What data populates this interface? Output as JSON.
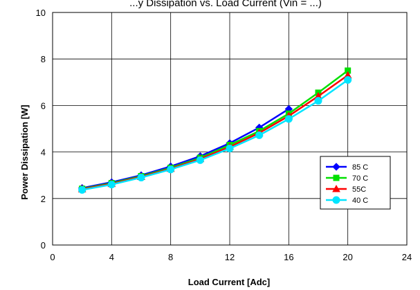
{
  "chart_data": {
    "type": "line",
    "title": "...y Dissipation vs. Load Current (Vin = ...)",
    "xlabel": "Load Current [Adc]",
    "ylabel": "Power Dissipation [W]",
    "xlim": [
      0,
      24
    ],
    "ylim": [
      0,
      10
    ],
    "xticks": [
      0,
      4,
      8,
      12,
      16,
      20,
      24
    ],
    "yticks": [
      0,
      2,
      4,
      6,
      8,
      10
    ],
    "grid": true,
    "legend_position": "lower-right",
    "series": [
      {
        "name": "85 C",
        "color": "#0000ff",
        "marker": "diamond",
        "x": [
          2,
          4,
          6,
          8,
          10,
          12,
          14,
          16
        ],
        "y": [
          2.45,
          2.7,
          3.0,
          3.38,
          3.82,
          4.38,
          5.05,
          5.85
        ]
      },
      {
        "name": "70 C",
        "color": "#00e000",
        "marker": "square",
        "x": [
          2,
          4,
          6,
          8,
          10,
          12,
          14,
          16,
          18,
          20
        ],
        "y": [
          2.42,
          2.66,
          2.96,
          3.32,
          3.75,
          4.3,
          4.9,
          5.65,
          6.55,
          7.5
        ]
      },
      {
        "name": "55C",
        "color": "#ff0000",
        "marker": "triangle",
        "x": [
          2,
          4,
          6,
          8,
          10,
          12,
          14,
          16,
          18,
          20
        ],
        "y": [
          2.4,
          2.63,
          2.93,
          3.28,
          3.7,
          4.22,
          4.82,
          5.55,
          6.4,
          7.3
        ]
      },
      {
        "name": "40 C",
        "color": "#00e5ff",
        "marker": "circle",
        "x": [
          2,
          4,
          6,
          8,
          10,
          12,
          14,
          16,
          18,
          20
        ],
        "y": [
          2.37,
          2.6,
          2.9,
          3.25,
          3.65,
          4.15,
          4.72,
          5.42,
          6.2,
          7.1
        ]
      }
    ]
  }
}
